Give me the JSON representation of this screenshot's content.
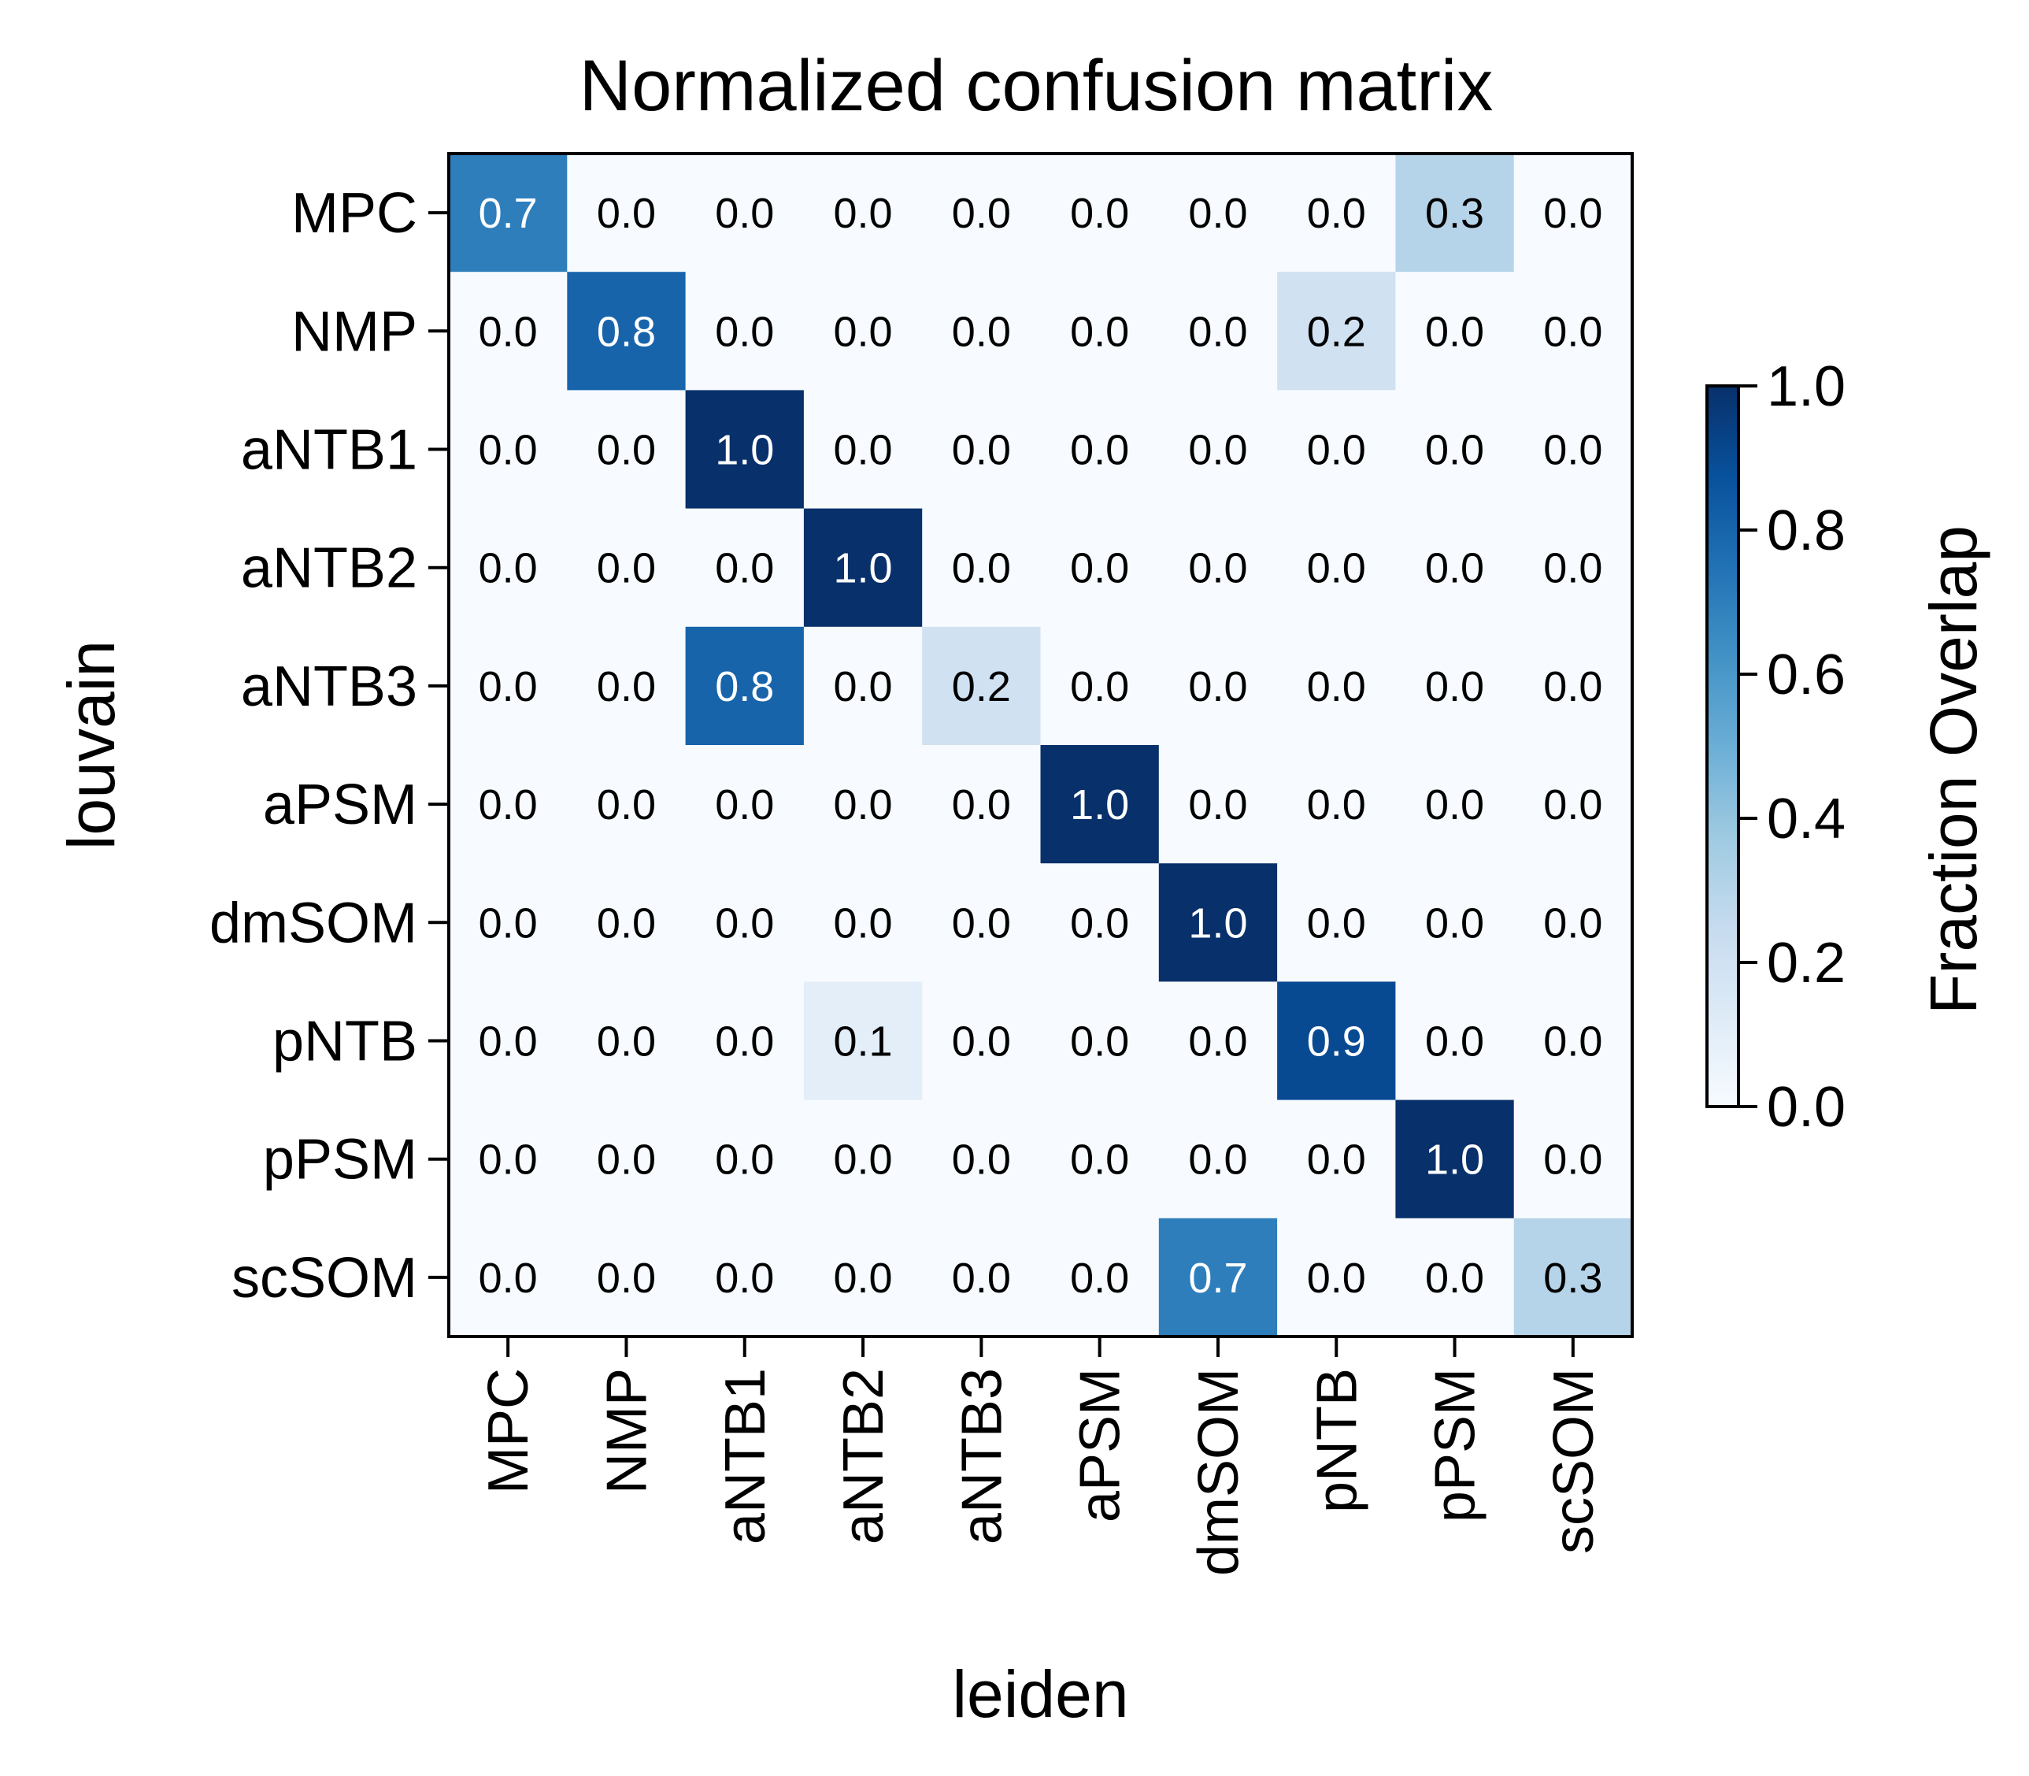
{
  "chart_data": {
    "type": "heatmap",
    "title": "Normalized confusion matrix",
    "xlabel": "leiden",
    "ylabel": "louvain",
    "x_categories": [
      "MPC",
      "NMP",
      "aNTB1",
      "aNTB2",
      "aNTB3",
      "aPSM",
      "dmSOM",
      "pNTB",
      "pPSM",
      "scSOM"
    ],
    "y_categories": [
      "MPC",
      "NMP",
      "aNTB1",
      "aNTB2",
      "aNTB3",
      "aPSM",
      "dmSOM",
      "pNTB",
      "pPSM",
      "scSOM"
    ],
    "values": [
      [
        0.7,
        0.0,
        0.0,
        0.0,
        0.0,
        0.0,
        0.0,
        0.0,
        0.3,
        0.0
      ],
      [
        0.0,
        0.8,
        0.0,
        0.0,
        0.0,
        0.0,
        0.0,
        0.2,
        0.0,
        0.0
      ],
      [
        0.0,
        0.0,
        1.0,
        0.0,
        0.0,
        0.0,
        0.0,
        0.0,
        0.0,
        0.0
      ],
      [
        0.0,
        0.0,
        0.0,
        1.0,
        0.0,
        0.0,
        0.0,
        0.0,
        0.0,
        0.0
      ],
      [
        0.0,
        0.0,
        0.8,
        0.0,
        0.2,
        0.0,
        0.0,
        0.0,
        0.0,
        0.0
      ],
      [
        0.0,
        0.0,
        0.0,
        0.0,
        0.0,
        1.0,
        0.0,
        0.0,
        0.0,
        0.0
      ],
      [
        0.0,
        0.0,
        0.0,
        0.0,
        0.0,
        0.0,
        1.0,
        0.0,
        0.0,
        0.0
      ],
      [
        0.0,
        0.0,
        0.0,
        0.1,
        0.0,
        0.0,
        0.0,
        0.9,
        0.0,
        0.0
      ],
      [
        0.0,
        0.0,
        0.0,
        0.0,
        0.0,
        0.0,
        0.0,
        0.0,
        1.0,
        0.0
      ],
      [
        0.0,
        0.0,
        0.0,
        0.0,
        0.0,
        0.0,
        0.7,
        0.0,
        0.0,
        0.3
      ]
    ],
    "value_format": "0.0",
    "colorbar": {
      "label": "Fraction Overlap",
      "range": [
        0.0,
        1.0
      ],
      "ticks": [
        "0.0",
        "0.2",
        "0.4",
        "0.6",
        "0.8",
        "1.0"
      ],
      "colormap": "Blues"
    },
    "grid": false
  }
}
